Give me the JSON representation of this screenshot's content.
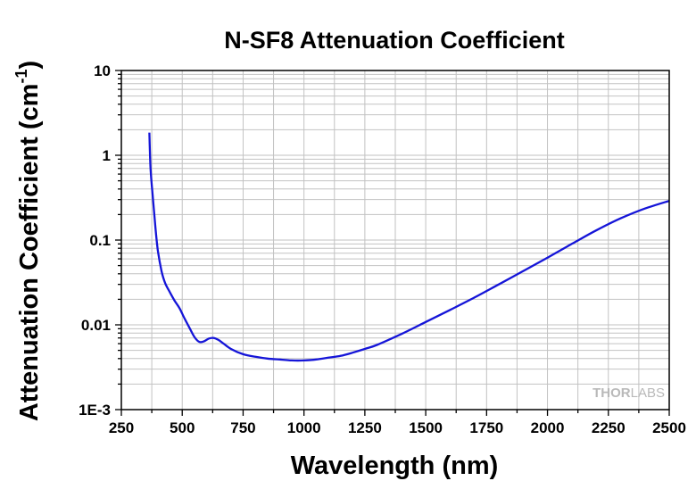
{
  "chart_data": {
    "type": "line",
    "title": "N-SF8 Attenuation Coefficient",
    "xlabel": "Wavelength (nm)",
    "ylabel": "Attenuation Coefficient (cm",
    "ylabel_superscript": "-1",
    "ylabel_close": ")",
    "xlim": [
      250,
      2500
    ],
    "ylim": [
      0.001,
      10
    ],
    "yscale": "log",
    "grid": true,
    "x_ticks": [
      "250",
      "500",
      "750",
      "1000",
      "1250",
      "1500",
      "1750",
      "2000",
      "2250",
      "2500"
    ],
    "y_ticks": [
      "1E-3",
      "0.01",
      "0.1",
      "1",
      "10"
    ],
    "series": [
      {
        "color": "#1515d8",
        "x": [
          365,
          370,
          380,
          390,
          400,
          415,
          430,
          450,
          470,
          490,
          510,
          530,
          550,
          570,
          590,
          610,
          630,
          650,
          670,
          700,
          750,
          800,
          850,
          900,
          950,
          1000,
          1050,
          1100,
          1150,
          1200,
          1250,
          1300,
          1400,
          1500,
          1600,
          1700,
          1800,
          1900,
          2000,
          2100,
          2200,
          2300,
          2400,
          2500
        ],
        "y": [
          1.85,
          0.7,
          0.3,
          0.14,
          0.075,
          0.043,
          0.031,
          0.024,
          0.019,
          0.0155,
          0.0118,
          0.0092,
          0.0072,
          0.0063,
          0.0064,
          0.0069,
          0.007,
          0.0066,
          0.006,
          0.0052,
          0.0045,
          0.0042,
          0.004,
          0.0039,
          0.0038,
          0.0038,
          0.0039,
          0.0041,
          0.0043,
          0.0047,
          0.0052,
          0.0058,
          0.0078,
          0.0108,
          0.015,
          0.021,
          0.03,
          0.043,
          0.062,
          0.09,
          0.13,
          0.18,
          0.235,
          0.29
        ]
      }
    ]
  },
  "watermark": {
    "part1": "THOR",
    "part2": "LABS"
  }
}
